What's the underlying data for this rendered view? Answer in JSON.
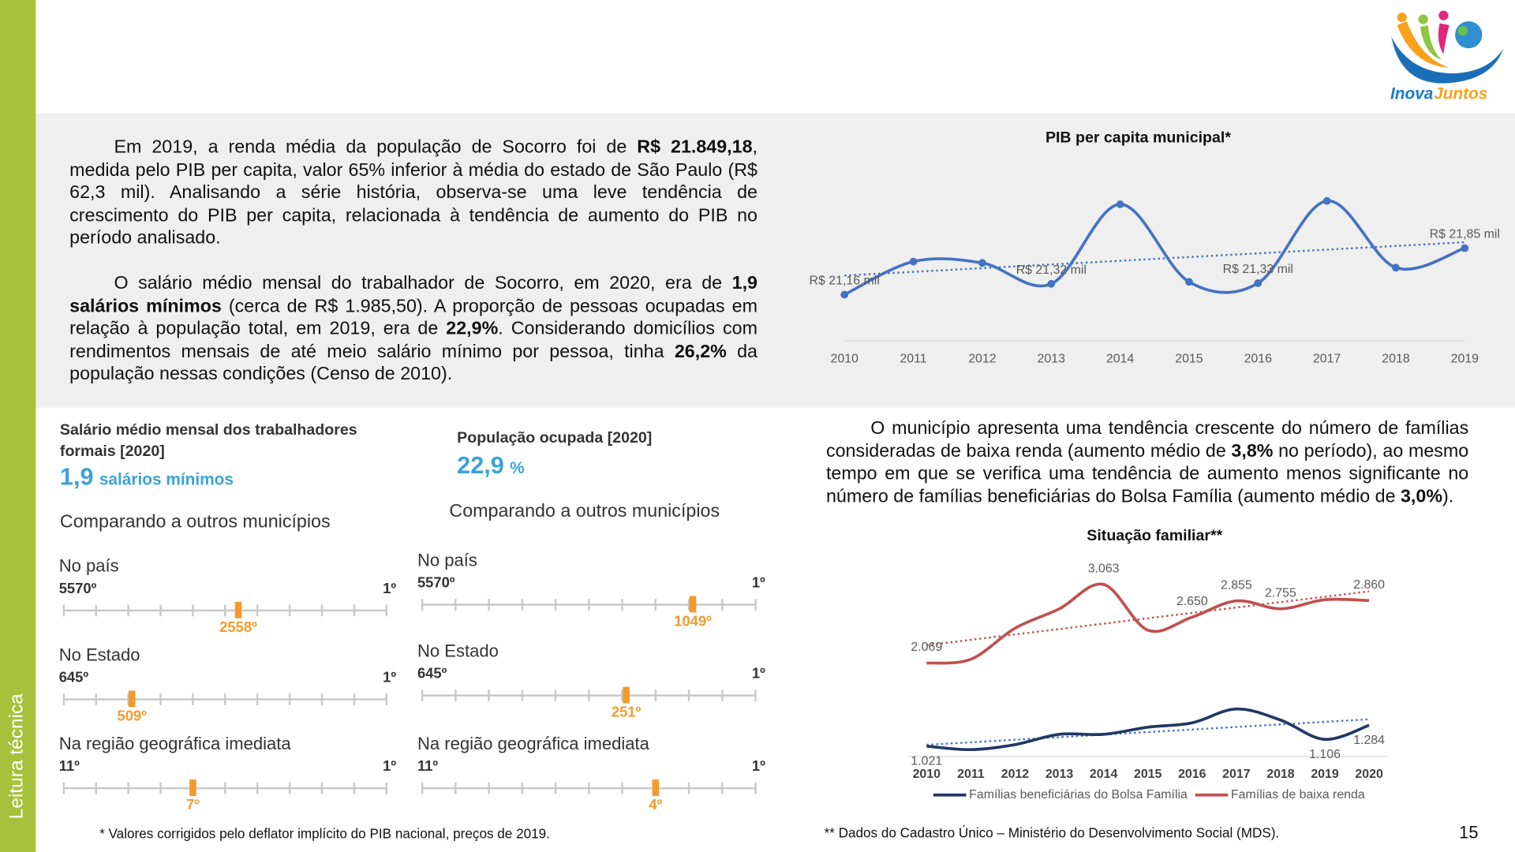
{
  "sidebar_label": "Leitura técnica",
  "logo": {
    "part1": "Inova",
    "part2": "Juntos"
  },
  "paragraphs": [
    [
      {
        "text": "Em 2019, a renda média da população de Socorro foi de "
      },
      {
        "text": "R$ 21.849,18",
        "bold": true
      },
      {
        "text": ", medida pelo PIB per capita, valor 65% inferior à média do estado de São Paulo (R$ 62,3 mil). Analisando a série história, observa-se uma leve tendência de crescimento do PIB per capita, relacionada à tendência de aumento do PIB no período analisado."
      }
    ],
    [
      {
        "text": "O salário médio mensal do trabalhador de Socorro, em 2020, era de "
      },
      {
        "text": "1,9 salários mínimos",
        "bold": true
      },
      {
        "text": " (cerca de R$ 1.985,50). A proporção de pessoas ocupadas em relação à população total, em 2019, era de "
      },
      {
        "text": "22,9%",
        "bold": true
      },
      {
        "text": ". Considerando domicílios com rendimentos mensais de até meio salário mínimo por pessoa, tinha "
      },
      {
        "text": "26,2%",
        "bold": true
      },
      {
        "text": " da população nessas condições (Censo de 2010)."
      }
    ],
    [
      {
        "text": "O município apresenta uma tendência crescente do número de famílias consideradas de baixa renda (aumento médio de "
      },
      {
        "text": "3,8%",
        "bold": true
      },
      {
        "text": " no período), ao mesmo tempo em que se verifica uma tendência de aumento menos significante no número de famílias beneficiárias do Bolsa Família (aumento médio de "
      },
      {
        "text": "3,0%",
        "bold": true
      },
      {
        "text": ")."
      }
    ]
  ],
  "indicators": [
    {
      "title": "Salário médio mensal dos trabalhadores formais [2020]",
      "value": "1,9",
      "unit": "salários mínimos",
      "compare_label": "Comparando a outros municípios",
      "rankings": [
        {
          "scope": "No país",
          "from": {
            "value": 5570,
            "label": "5570º"
          },
          "to": {
            "value": 1,
            "label": "1º"
          },
          "rank": {
            "value": 2558,
            "label": "2558º"
          }
        },
        {
          "scope": "No Estado",
          "from": {
            "value": 645,
            "label": "645º"
          },
          "to": {
            "value": 1,
            "label": "1º"
          },
          "rank": {
            "value": 509,
            "label": "509º"
          }
        },
        {
          "scope": "Na região geográfica imediata",
          "from": {
            "value": 11,
            "label": "11º"
          },
          "to": {
            "value": 1,
            "label": "1º"
          },
          "rank": {
            "value": 7,
            "label": "7º"
          }
        }
      ]
    },
    {
      "title": "População ocupada [2020]",
      "value": "22,9",
      "unit": "%",
      "compare_label": "Comparando a outros municípios",
      "rankings": [
        {
          "scope": "No país",
          "from": {
            "value": 5570,
            "label": "5570º"
          },
          "to": {
            "value": 1,
            "label": "1º"
          },
          "rank": {
            "value": 1049,
            "label": "1049º"
          }
        },
        {
          "scope": "No Estado",
          "from": {
            "value": 645,
            "label": "645º"
          },
          "to": {
            "value": 1,
            "label": "1º"
          },
          "rank": {
            "value": 251,
            "label": "251º"
          }
        },
        {
          "scope": "Na região geográfica imediata",
          "from": {
            "value": 11,
            "label": "11º"
          },
          "to": {
            "value": 1,
            "label": "1º"
          },
          "rank": {
            "value": 4,
            "label": "4º"
          }
        }
      ]
    }
  ],
  "footnotes": [
    "* Valores corrigidos pelo deflator implícito do PIB nacional, preços de 2019.",
    "** Dados do Cadastro Único – Ministério do Desenvolvimento Social (MDS)."
  ],
  "page_number": "15",
  "chart_data": [
    {
      "type": "line",
      "title": "PIB per capita municipal*",
      "categories": [
        "2010",
        "2011",
        "2012",
        "2013",
        "2014",
        "2015",
        "2016",
        "2017",
        "2018",
        "2019"
      ],
      "values": [
        21.16,
        21.65,
        21.63,
        21.32,
        22.5,
        21.35,
        21.33,
        22.55,
        21.56,
        21.85
      ],
      "value_labels": [
        "R$ 21,16 mil",
        null,
        null,
        "R$ 21,32 mil",
        null,
        null,
        "R$ 21,33 mil",
        null,
        null,
        "R$ 21,85 mil"
      ],
      "color": "#4472c4",
      "markers": true,
      "trendline": true
    },
    {
      "type": "line",
      "title": "Situação familiar**",
      "categories": [
        "2010",
        "2011",
        "2012",
        "2013",
        "2014",
        "2015",
        "2016",
        "2017",
        "2018",
        "2019",
        "2020"
      ],
      "series": [
        {
          "name": "Famílias beneficiárias do Bolsa Família",
          "color": "#203864",
          "trend_color": "#4472c4",
          "values": [
            1021,
            977,
            1040,
            1170,
            1170,
            1260,
            1315,
            1490,
            1350,
            1106,
            1284
          ],
          "value_labels": [
            "1.021",
            null,
            null,
            null,
            null,
            null,
            null,
            null,
            null,
            "1.106",
            "1.284"
          ]
        },
        {
          "name": "Famílias de baixa renda",
          "color": "#c0504d",
          "trend_color": "#c0504d",
          "values": [
            2069,
            2118,
            2510,
            2755,
            3063,
            2485,
            2650,
            2855,
            2755,
            2870,
            2860
          ],
          "value_labels": [
            "2.069",
            null,
            null,
            null,
            "3.063",
            null,
            "2.650",
            "2.855",
            "2.755",
            null,
            "2.860"
          ]
        }
      ],
      "markers": false,
      "trendline": true,
      "legend": "bottom"
    }
  ]
}
